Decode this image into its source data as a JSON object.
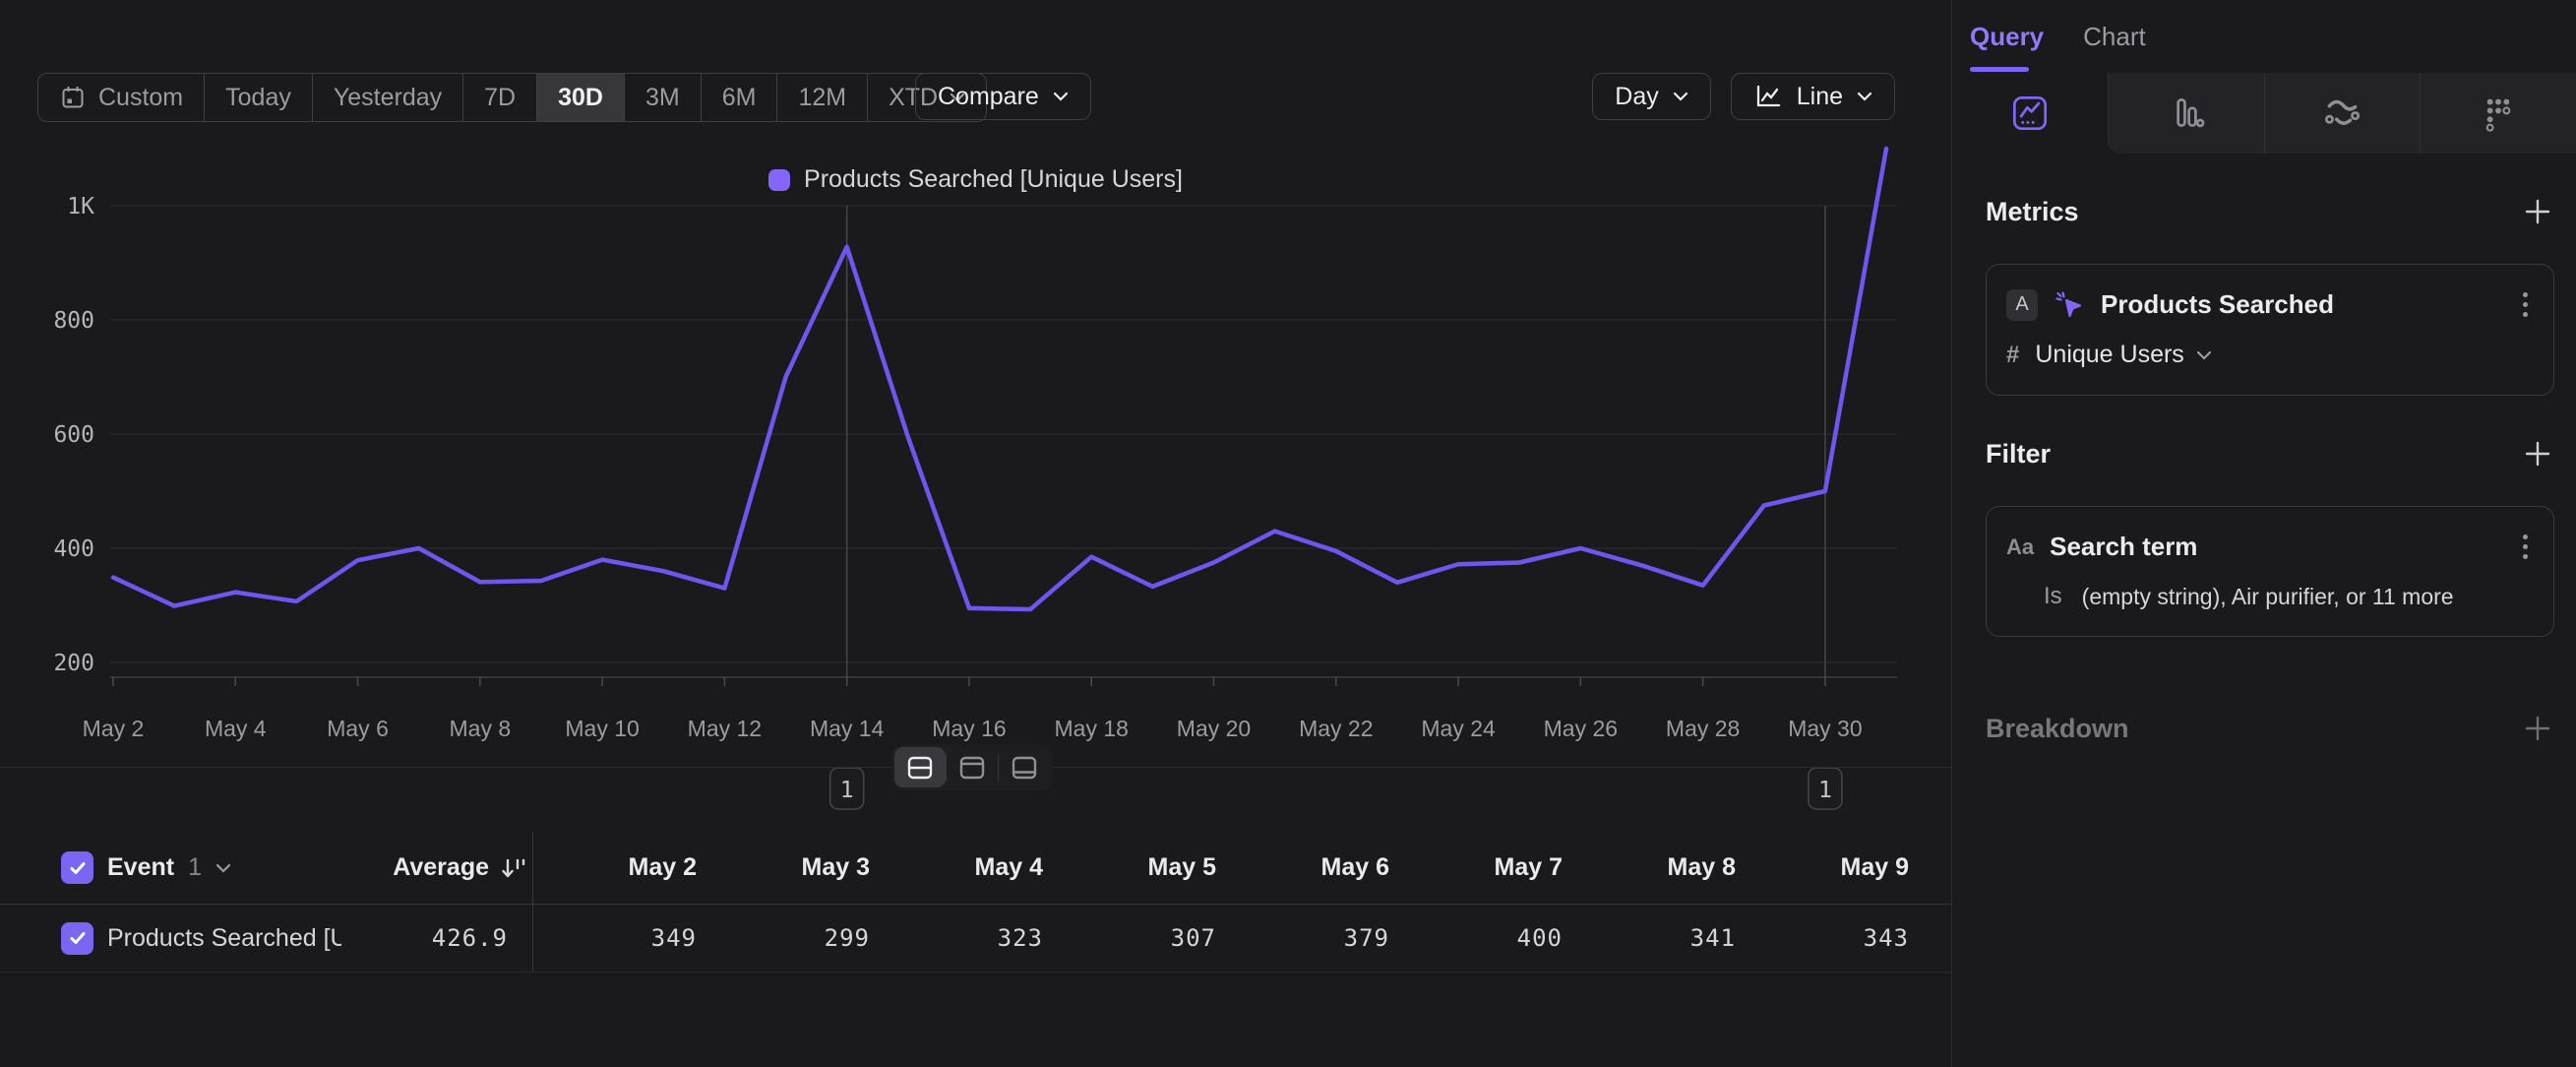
{
  "toolbar": {
    "date_ranges": [
      "Custom",
      "Today",
      "Yesterday",
      "7D",
      "30D",
      "3M",
      "6M",
      "12M",
      "XTD"
    ],
    "active_range": "30D",
    "compare_label": "Compare",
    "granularity": "Day",
    "chart_type": "Line"
  },
  "chart": {
    "legend": "Products Searched [Unique Users]",
    "y_ticks": [
      "1K",
      "800",
      "600",
      "400",
      "200"
    ],
    "y_tick_values": [
      1000,
      800,
      600,
      400,
      200
    ],
    "annotations": [
      {
        "date": "May 14",
        "label": "1"
      },
      {
        "date": "May 30",
        "label": "1"
      }
    ],
    "colors": {
      "line": "#6e57f0",
      "legend_swatch": "#8565fa"
    }
  },
  "chart_data": {
    "type": "line",
    "title": "Products Searched [Unique Users]",
    "x": [
      "May 2",
      "May 3",
      "May 4",
      "May 5",
      "May 6",
      "May 7",
      "May 8",
      "May 9",
      "May 10",
      "May 11",
      "May 12",
      "May 13",
      "May 14",
      "May 15",
      "May 16",
      "May 17",
      "May 18",
      "May 19",
      "May 20",
      "May 21",
      "May 22",
      "May 23",
      "May 24",
      "May 25",
      "May 26",
      "May 27",
      "May 28",
      "May 29",
      "May 30",
      "May 31"
    ],
    "values": [
      349,
      299,
      323,
      307,
      379,
      400,
      341,
      343,
      380,
      360,
      330,
      700,
      928,
      595,
      295,
      293,
      385,
      333,
      375,
      430,
      395,
      340,
      372,
      375,
      400,
      370,
      335,
      475,
      500,
      1100
    ],
    "xlabel": "",
    "ylabel": "",
    "ylim": [
      200,
      1000
    ],
    "x_tick_step": 2,
    "grid": true,
    "legend_position": "top-center"
  },
  "sidebar": {
    "tabs": [
      {
        "label": "Query",
        "active": true
      },
      {
        "label": "Chart",
        "active": false
      }
    ],
    "view_tabs": [
      "insights",
      "bar-chart",
      "flows",
      "retention"
    ],
    "active_view_tab": "insights",
    "metrics": {
      "heading": "Metrics",
      "items": [
        {
          "letter": "A",
          "name": "Products Searched",
          "aggregation_symbol": "#",
          "aggregation": "Unique Users"
        }
      ]
    },
    "filter": {
      "heading": "Filter",
      "items": [
        {
          "type_icon": "Aa",
          "name": "Search term",
          "operator": "Is",
          "value": "(empty string), Air purifier, or 11 more"
        }
      ]
    },
    "breakdown": {
      "heading": "Breakdown"
    }
  },
  "table": {
    "event_label": "Event",
    "event_count": "1",
    "average_label": "Average",
    "columns": [
      "May 2",
      "May 3",
      "May 4",
      "May 5",
      "May 6",
      "May 7",
      "May 8",
      "May 9"
    ],
    "rows": [
      {
        "name": "Products Searched [Un...",
        "average": "426.9",
        "values": [
          "349",
          "299",
          "323",
          "307",
          "379",
          "400",
          "341",
          "343"
        ],
        "checked": true
      }
    ]
  }
}
